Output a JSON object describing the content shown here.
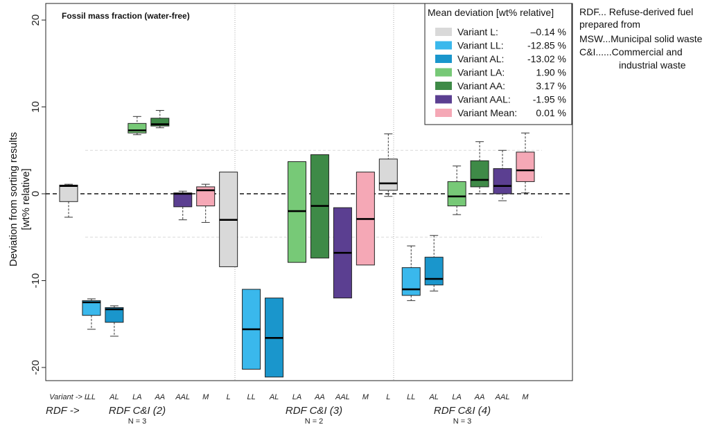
{
  "chart_data": {
    "type": "box",
    "title": "Fossil mass fraction (water-free)",
    "ylabel_line1": "Deviation from sorting results",
    "ylabel_line2": "[wt% relative]",
    "ylim": [
      -22,
      21
    ],
    "yticks": [
      -20,
      -10,
      0,
      10,
      20
    ],
    "reference_line": 0,
    "grid_lines": [
      5,
      -5
    ],
    "xaxis_prefix": "Variant -> L",
    "group_prefix": "RDF ->",
    "categories": [
      "LL",
      "AL",
      "LA",
      "AA",
      "AAL",
      "M",
      "L",
      "LL",
      "AL",
      "LA",
      "AA",
      "AAL",
      "M",
      "L",
      "LL",
      "AL",
      "LA",
      "AA",
      "AAL",
      "M"
    ],
    "groups": [
      {
        "name": "RDF C&I (2)",
        "n": "N = 3"
      },
      {
        "name": "RDF C&I (3)",
        "n": "N = 2"
      },
      {
        "name": "RDF C&I (4)",
        "n": "N = 3"
      }
    ],
    "boxes": [
      {
        "group": 0,
        "variant": "L",
        "color": "#d9d9d9",
        "min": -2.7,
        "q1": -0.9,
        "median": 0.9,
        "q3": 1.0,
        "max": 1.1
      },
      {
        "group": 0,
        "variant": "LL",
        "color": "#3ab8ec",
        "min": -15.6,
        "q1": -14.0,
        "median": -12.5,
        "q3": -12.3,
        "max": -12.1
      },
      {
        "group": 0,
        "variant": "AL",
        "color": "#1a96cc",
        "min": -16.4,
        "q1": -14.8,
        "median": -13.3,
        "q3": -13.1,
        "max": -12.9
      },
      {
        "group": 0,
        "variant": "LA",
        "color": "#77c977",
        "min": 6.8,
        "q1": 7.0,
        "median": 7.3,
        "q3": 8.1,
        "max": 8.9
      },
      {
        "group": 0,
        "variant": "AA",
        "color": "#3e8a47",
        "min": 7.6,
        "q1": 7.8,
        "median": 8.0,
        "q3": 8.7,
        "max": 9.6
      },
      {
        "group": 0,
        "variant": "AAL",
        "color": "#5b3f91",
        "min": -3.0,
        "q1": -1.5,
        "median": 0.0,
        "q3": 0.1,
        "max": 0.3
      },
      {
        "group": 0,
        "variant": "M",
        "color": "#f5a8b6",
        "min": -3.3,
        "q1": -1.4,
        "median": 0.4,
        "q3": 0.8,
        "max": 1.1
      },
      {
        "group": 1,
        "variant": "L",
        "color": "#d9d9d9",
        "min": -8.4,
        "q1": -8.4,
        "median": -3.0,
        "q3": 2.5,
        "max": 2.5
      },
      {
        "group": 1,
        "variant": "LL",
        "color": "#3ab8ec",
        "min": -20.2,
        "q1": -20.2,
        "median": -15.6,
        "q3": -11.0,
        "max": -11.0
      },
      {
        "group": 1,
        "variant": "AL",
        "color": "#1a96cc",
        "min": -21.1,
        "q1": -21.1,
        "median": -16.6,
        "q3": -12.0,
        "max": -12.0
      },
      {
        "group": 1,
        "variant": "LA",
        "color": "#77c977",
        "min": -7.9,
        "q1": -7.9,
        "median": -2.0,
        "q3": 3.7,
        "max": 3.7
      },
      {
        "group": 1,
        "variant": "AA",
        "color": "#3e8a47",
        "min": -7.4,
        "q1": -7.4,
        "median": -1.4,
        "q3": 4.5,
        "max": 4.5
      },
      {
        "group": 1,
        "variant": "AAL",
        "color": "#5b3f91",
        "min": -12.0,
        "q1": -12.0,
        "median": -6.8,
        "q3": -1.6,
        "max": -1.6
      },
      {
        "group": 1,
        "variant": "M",
        "color": "#f5a8b6",
        "min": -8.2,
        "q1": -8.2,
        "median": -2.9,
        "q3": 2.5,
        "max": 2.5
      },
      {
        "group": 2,
        "variant": "L",
        "color": "#d9d9d9",
        "min": -0.3,
        "q1": 0.4,
        "median": 1.2,
        "q3": 4.0,
        "max": 6.9
      },
      {
        "group": 2,
        "variant": "LL",
        "color": "#3ab8ec",
        "min": -12.3,
        "q1": -11.7,
        "median": -11.0,
        "q3": -8.5,
        "max": -6.0
      },
      {
        "group": 2,
        "variant": "AL",
        "color": "#1a96cc",
        "min": -11.2,
        "q1": -10.5,
        "median": -9.8,
        "q3": -7.3,
        "max": -4.8
      },
      {
        "group": 2,
        "variant": "LA",
        "color": "#77c977",
        "min": -2.4,
        "q1": -1.4,
        "median": -0.3,
        "q3": 1.4,
        "max": 3.2
      },
      {
        "group": 2,
        "variant": "AA",
        "color": "#3e8a47",
        "min": 0.0,
        "q1": 0.8,
        "median": 1.6,
        "q3": 3.8,
        "max": 6.0
      },
      {
        "group": 2,
        "variant": "AAL",
        "color": "#5b3f91",
        "min": -0.8,
        "q1": 0.0,
        "median": 0.9,
        "q3": 2.9,
        "max": 5.0
      },
      {
        "group": 2,
        "variant": "M",
        "color": "#f5a8b6",
        "min": 0.1,
        "q1": 1.4,
        "median": 2.7,
        "q3": 4.8,
        "max": 7.0
      }
    ],
    "legend": {
      "title": "Mean deviation [wt% relative]",
      "placement": "top-right",
      "entries": [
        {
          "label": "Variant L:",
          "value": "–0.14 %",
          "color": "#d9d9d9"
        },
        {
          "label": "Variant LL:",
          "value": "-12.85 %",
          "color": "#3ab8ec"
        },
        {
          "label": "Variant AL:",
          "value": "-13.02 %",
          "color": "#1a96cc"
        },
        {
          "label": "Variant LA:",
          "value": "1.90 %",
          "color": "#77c977"
        },
        {
          "label": "Variant AA:",
          "value": "3.17 %",
          "color": "#3e8a47"
        },
        {
          "label": "Variant AAL:",
          "value": "-1.95 %",
          "color": "#5b3f91"
        },
        {
          "label": "Variant Mean:",
          "value": "0.01 %",
          "color": "#f5a8b6"
        }
      ]
    },
    "notes": [
      "RDF... Refuse-derived fuel",
      "prepared from",
      "MSW...Municipal solid waste",
      "C&I......Commercial and",
      "industrial waste"
    ]
  }
}
